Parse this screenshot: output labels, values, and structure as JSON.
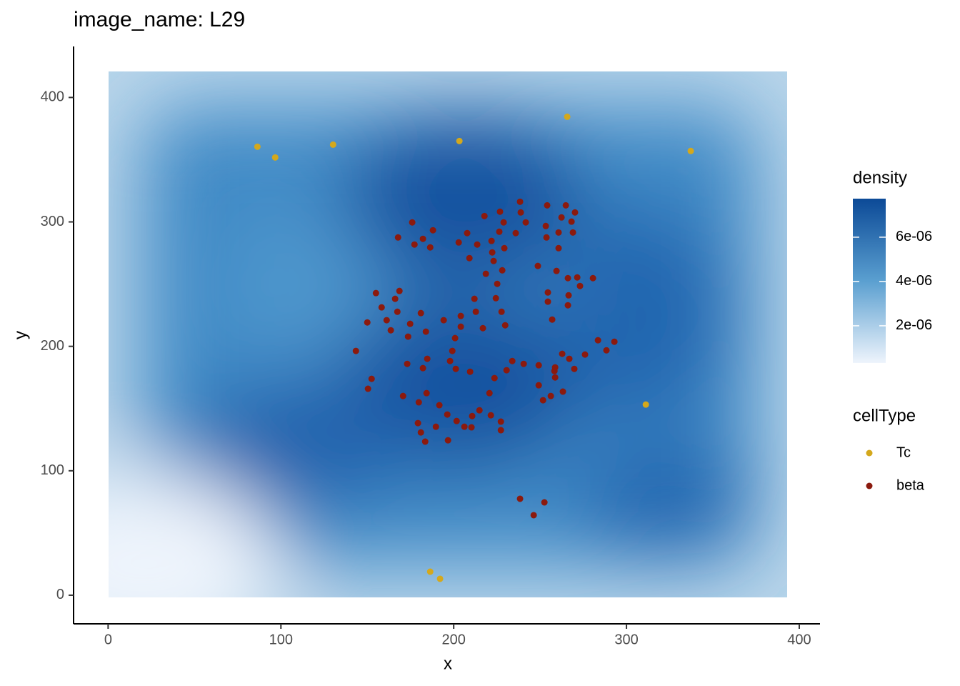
{
  "chart_data": {
    "type": "scatter",
    "title": "image_name: L29",
    "x_label": "x",
    "y_label": "y",
    "xlim": [
      -20,
      412
    ],
    "ylim": [
      -23,
      441
    ],
    "xticks": [
      0,
      100,
      200,
      300,
      400
    ],
    "yticks": [
      0,
      100,
      200,
      300,
      400
    ],
    "legend_title": "cellType",
    "legend_position": "right",
    "series": [
      {
        "name": "Tc",
        "color": "#d4a81c",
        "x": [
          86.4,
          96.7,
          130.2,
          203.3,
          265.7,
          337.2,
          311.2,
          186.4,
          192.1
        ],
        "values": [
          360.4,
          351.8,
          362.1,
          365,
          384.5,
          357,
          153.2,
          18.9,
          13.2
        ]
      },
      {
        "name": "beta",
        "color": "#8b1a0e",
        "x": [
          176.0,
          167.8,
          182.2,
          177.3,
          188.0,
          186.4,
          217.8,
          226.8,
          228.9,
          238.4,
          238.8,
          241.7,
          235.9,
          207.8,
          202.9,
          213.6,
          209.1,
          222.3,
          221.9,
          223.1,
          226.4,
          229.3,
          254.1,
          264.9,
          270.2,
          262.4,
          268.2,
          253.3,
          260.7,
          269.0,
          253.7,
          260.7,
          248.7,
          259.5,
          266.1,
          271.5,
          273.1,
          280.6,
          218.6,
          228.1,
          225.2,
          155.0,
          168.6,
          166.1,
          158.3,
          161.2,
          167.4,
          150.0,
          163.6,
          174.8,
          173.6,
          181.0,
          183.9,
          194.2,
          204.1,
          204.1,
          212.0,
          212.8,
          216.9,
          224.4,
          227.7,
          229.8,
          254.5,
          254.5,
          257.0,
          266.5,
          266.1,
          143.4,
          200.8,
          199.2,
          197.9,
          201.2,
          209.5,
          184.7,
          182.2,
          173.1,
          152.5,
          150.4,
          170.7,
          179.8,
          184.3,
          191.7,
          196.3,
          201.7,
          206.2,
          210.3,
          210.7,
          214.9,
          179.3,
          181.0,
          183.5,
          189.7,
          196.7,
          220.7,
          223.6,
          230.6,
          233.9,
          240.5,
          249.2,
          269.8,
          258.3,
          258.7,
          258.7,
          262.8,
          266.9,
          276.0,
          283.5,
          288.4,
          293.0,
          249.2,
          256.2,
          263.2,
          251.7,
          221.5,
          227.3,
          227.3,
          238.4,
          252.5,
          246.3
        ],
        "values": [
          299.6,
          287.5,
          286.4,
          281.8,
          293.3,
          279.5,
          304.7,
          308.2,
          299.6,
          316.2,
          307.6,
          299.6,
          291.0,
          291.0,
          283.5,
          281.8,
          270.9,
          275.5,
          284.7,
          268.6,
          292.1,
          278.9,
          313.3,
          313.3,
          307.6,
          303.6,
          300.2,
          296.7,
          291.5,
          291.5,
          287.5,
          278.9,
          264.6,
          260.6,
          254.8,
          255.4,
          248.5,
          254.8,
          258.3,
          261.1,
          250.2,
          242.8,
          244.5,
          238.2,
          231.3,
          221.0,
          227.8,
          219.2,
          212.9,
          218.1,
          207.8,
          226.7,
          211.8,
          221.0,
          224.4,
          215.8,
          238.2,
          227.8,
          214.6,
          238.7,
          227.8,
          216.9,
          243.3,
          235.9,
          221.5,
          241.0,
          233.0,
          196.3,
          206.6,
          196.3,
          188.2,
          181.9,
          179.6,
          190.0,
          182.5,
          185.9,
          173.9,
          165.9,
          160.1,
          155.0,
          162.4,
          152.7,
          145.2,
          140.0,
          135.4,
          134.9,
          144.0,
          148.6,
          138.3,
          130.8,
          123.4,
          135.4,
          124.5,
          162.4,
          174.5,
          180.8,
          188.2,
          185.9,
          184.8,
          181.9,
          180.2,
          175.0,
          183.1,
          194.0,
          190.0,
          193.4,
          204.9,
          196.8,
          203.7,
          168.7,
          160.1,
          163.6,
          156.7,
          144.6,
          139.5,
          132.6,
          77.5,
          74.6,
          64.3
        ]
      }
    ],
    "density": {
      "title": "density",
      "colors": [
        "#eef4fc",
        "#0c4a97"
      ],
      "lim": [
        3.2e-07,
        7.74e-06
      ],
      "ticks": [
        {
          "value": 2e-06,
          "label": "2e-06"
        },
        {
          "value": 4e-06,
          "label": "4e-06"
        },
        {
          "value": 6e-06,
          "label": "6e-06"
        }
      ]
    }
  }
}
